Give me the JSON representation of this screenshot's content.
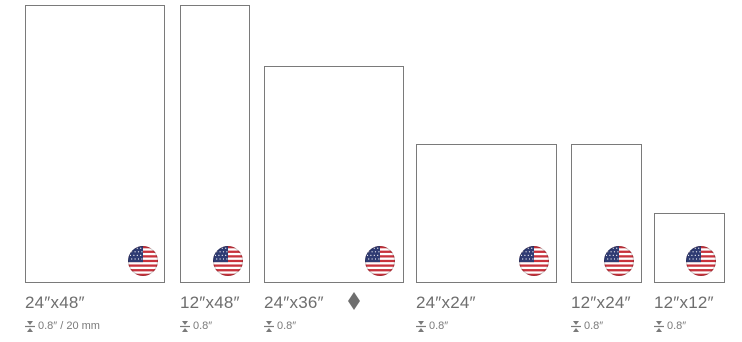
{
  "colors": {
    "frame_border": "#7a7a7a",
    "label_text": "#6e6e6e",
    "flag_red": "#c8323c",
    "flag_blue": "#2f3b73"
  },
  "icons": {
    "flag": "us-flag-icon",
    "thickness": "thickness-icon",
    "diamond": "diamond-icon"
  },
  "sizes": [
    {
      "label": "24″x48″",
      "thickness": "0.8″ / 20 mm"
    },
    {
      "label": "12″x48″",
      "thickness": "0.8″"
    },
    {
      "label": "24″x36″",
      "thickness": "0.8″"
    },
    {
      "label": "24″x24″",
      "thickness": "0.8″"
    },
    {
      "label": "12″x24″",
      "thickness": "0.8″"
    },
    {
      "label": "12″x12″",
      "thickness": "0.8″"
    }
  ]
}
